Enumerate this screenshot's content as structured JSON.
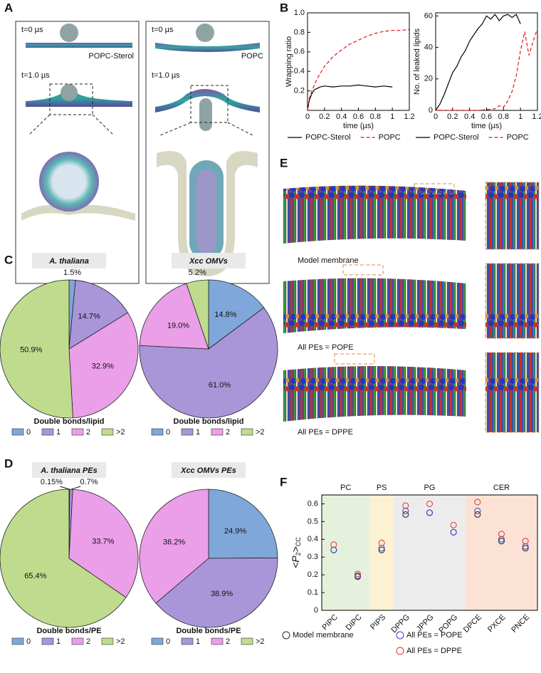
{
  "panel_labels": [
    "A",
    "B",
    "C",
    "D",
    "E",
    "F"
  ],
  "panel_a": {
    "left": {
      "t0": "t=0 µs",
      "membrane": "POPC-Sterol",
      "t1": "t=1.0 µs"
    },
    "right": {
      "t0": "t=0 µs",
      "membrane": "POPC",
      "t1": "t=1.0 µs"
    }
  },
  "panel_e": {
    "labels": [
      "Model membrane",
      "All PEs = POPE",
      "All PEs = DPPE"
    ]
  },
  "chart_data": [
    {
      "type": "line",
      "xlabel": "time (µs)",
      "ylabel": "Wrapping ratio",
      "xlim": [
        0,
        1.2
      ],
      "xticks": [
        0,
        0.2,
        0.4,
        0.6,
        0.8,
        1,
        1.2
      ],
      "ylim": [
        0,
        1
      ],
      "yticks": [
        0.2,
        0.4,
        0.6,
        0.8,
        {
          "value": 1,
          "label": "1.0"
        }
      ],
      "legend": "bottom",
      "series": [
        {
          "name": "POPC-Sterol",
          "color": "#000000",
          "dash": "solid",
          "x": [
            0,
            0.02,
            0.05,
            0.08,
            0.1,
            0.15,
            0.2,
            0.3,
            0.4,
            0.5,
            0.6,
            0.7,
            0.8,
            0.9,
            1.0
          ],
          "values": [
            0,
            0.1,
            0.17,
            0.21,
            0.22,
            0.24,
            0.25,
            0.24,
            0.25,
            0.25,
            0.26,
            0.25,
            0.24,
            0.25,
            0.24
          ]
        },
        {
          "name": "POPC",
          "color": "#e8161b",
          "dash": "dashed",
          "x": [
            0,
            0.02,
            0.05,
            0.1,
            0.15,
            0.2,
            0.3,
            0.4,
            0.5,
            0.6,
            0.7,
            0.8,
            0.9,
            1.0,
            1.1,
            1.2
          ],
          "values": [
            0,
            0.12,
            0.2,
            0.3,
            0.38,
            0.45,
            0.55,
            0.62,
            0.68,
            0.72,
            0.76,
            0.79,
            0.81,
            0.82,
            0.82,
            0.83
          ]
        }
      ]
    },
    {
      "type": "line",
      "xlabel": "time (µs)",
      "ylabel": "No. of leaked lipids",
      "xlim": [
        0,
        1.2
      ],
      "xticks": [
        0,
        0.2,
        0.4,
        0.6,
        0.8,
        1,
        1.2
      ],
      "ylim": [
        0,
        62
      ],
      "yticks": [
        0,
        20,
        40,
        60
      ],
      "legend": "bottom",
      "series": [
        {
          "name": "POPC-Sterol",
          "color": "#000000",
          "dash": "solid",
          "x": [
            0,
            0.05,
            0.1,
            0.15,
            0.2,
            0.25,
            0.3,
            0.35,
            0.4,
            0.45,
            0.5,
            0.55,
            0.6,
            0.65,
            0.7,
            0.75,
            0.8,
            0.85,
            0.9,
            0.95,
            1.0
          ],
          "values": [
            0,
            4,
            10,
            17,
            24,
            28,
            34,
            38,
            44,
            48,
            52,
            55,
            60,
            58,
            61,
            57,
            60,
            61,
            59,
            61,
            55
          ]
        },
        {
          "name": "POPC",
          "color": "#e8161b",
          "dash": "dashed",
          "x": [
            0,
            0.5,
            0.7,
            0.75,
            0.8,
            0.85,
            0.9,
            0.95,
            1.0,
            1.05,
            1.1,
            1.15,
            1.2
          ],
          "values": [
            0,
            0,
            1,
            3,
            2,
            6,
            12,
            22,
            38,
            50,
            35,
            44,
            52
          ]
        }
      ]
    },
    {
      "type": "pie",
      "title": "A. thaliana",
      "legend_title": "Double bonds/lipid",
      "categories": [
        "0",
        "1",
        "2",
        ">2"
      ],
      "colors": [
        "#7fa7d9",
        "#a996d8",
        "#eb9fe8",
        "#bfdc8e"
      ],
      "values": [
        1.5,
        14.7,
        32.9,
        50.9
      ],
      "value_labels": [
        "1.5%",
        "14.7%",
        "32.9%",
        "50.9%"
      ]
    },
    {
      "type": "pie",
      "title": "Xcc OMVs",
      "legend_title": "Double bonds/lipid",
      "categories": [
        "0",
        "1",
        "2",
        ">2"
      ],
      "colors": [
        "#7fa7d9",
        "#a996d8",
        "#eb9fe8",
        "#bfdc8e"
      ],
      "values": [
        14.8,
        61.0,
        19.0,
        5.2
      ],
      "value_labels": [
        "14.8%",
        "61.0%",
        "19.0%",
        "5.2%"
      ]
    },
    {
      "type": "pie",
      "title": "A. thaliana PEs",
      "legend_title": "Double bonds/PE",
      "leader_lines": true,
      "categories": [
        "0",
        "1",
        "2",
        ">2"
      ],
      "colors": [
        "#7fa7d9",
        "#a996d8",
        "#eb9fe8",
        "#bfdc8e"
      ],
      "values": [
        0.15,
        0.7,
        33.7,
        65.4
      ],
      "value_labels": [
        "0.15%",
        "0.7%",
        "33.7%",
        "65.4%"
      ]
    },
    {
      "type": "pie",
      "title": "Xcc OMVs PEs",
      "legend_title": "Double bonds/PE",
      "categories": [
        "0",
        "1",
        "2",
        ">2"
      ],
      "colors": [
        "#7fa7d9",
        "#a996d8",
        "#eb9fe8",
        "#bfdc8e"
      ],
      "values": [
        24.9,
        38.9,
        36.2,
        null
      ],
      "value_labels": [
        "24.9%",
        "38.9%",
        "36.2%",
        null
      ]
    },
    {
      "type": "dot",
      "ylabel": [
        "<P",
        "2",
        ">",
        "CC"
      ],
      "ylim": [
        0,
        0.65
      ],
      "yticks": [
        0,
        0.1,
        0.2,
        0.3,
        0.4,
        0.5,
        0.6
      ],
      "groups": [
        {
          "label": "PC",
          "color": "#e6f1dd",
          "categories": [
            "PIPC",
            "DIPC"
          ]
        },
        {
          "label": "PS",
          "color": "#fdf1d3",
          "categories": [
            "PIPS"
          ]
        },
        {
          "label": "PG",
          "color": "#ececec",
          "categories": [
            "DPPG",
            "JPPG",
            "POPG"
          ]
        },
        {
          "label": "CER",
          "color": "#fbe2d4",
          "categories": [
            "DPCE",
            "PXCE",
            "PNCE"
          ]
        }
      ],
      "series": [
        {
          "name": "Model membrane",
          "color": "#222222",
          "values": [
            0.34,
            0.19,
            0.34,
            0.54,
            0.55,
            0.44,
            0.54,
            0.39,
            0.35
          ]
        },
        {
          "name": "All PEs = POPE",
          "color": "#3344cc",
          "values": [
            0.34,
            0.195,
            0.35,
            0.56,
            0.55,
            0.44,
            0.56,
            0.4,
            0.36
          ]
        },
        {
          "name": "All PEs = DPPE",
          "color": "#e03030",
          "values": [
            0.37,
            0.205,
            0.38,
            0.59,
            0.6,
            0.48,
            0.61,
            0.43,
            0.39
          ]
        }
      ]
    }
  ]
}
